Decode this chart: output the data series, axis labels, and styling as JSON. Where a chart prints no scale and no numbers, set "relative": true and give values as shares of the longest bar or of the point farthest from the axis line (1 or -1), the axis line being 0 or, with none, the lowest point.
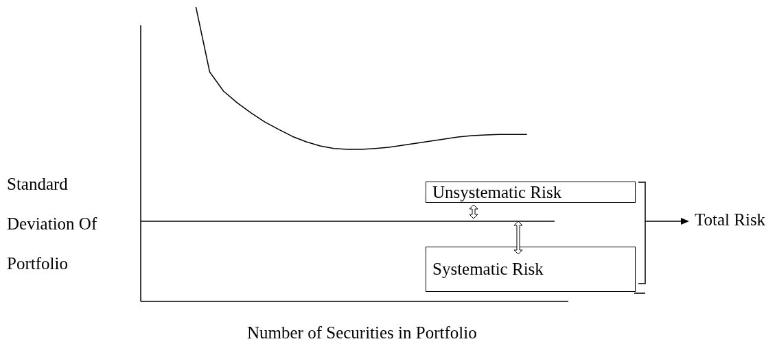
{
  "chart_data": {
    "type": "line",
    "relative": true,
    "xlabel": "Number of Securities in Portfolio",
    "ylabel": "Standard Deviation Of Portfolio",
    "marker": "none",
    "categories": [
      null,
      null,
      null,
      null,
      null,
      null,
      null,
      null,
      null,
      null,
      null,
      null,
      null,
      null,
      null,
      null,
      null,
      null,
      null,
      null,
      null,
      null,
      null,
      null,
      null,
      null,
      null,
      null,
      null,
      null,
      null,
      null
    ],
    "series": [
      {
        "color": "#000000",
        "values": [
          null,
          null,
          null,
          null,
          1,
          0.779,
          0.714,
          0.674,
          0.64,
          0.609,
          0.584,
          0.56,
          0.542,
          0.528,
          0.519,
          0.516,
          0.516,
          0.519,
          0.523,
          0.53,
          0.537,
          0.544,
          0.551,
          0.558,
          0.563,
          0.565,
          0.567,
          0.567,
          0.567,
          null,
          null,
          null
        ]
      },
      {
        "color": "#000000",
        "values": [
          0.272,
          0.272,
          0.272,
          0.272,
          0.272,
          0.272,
          0.272,
          0.272,
          0.272,
          0.272,
          0.272,
          0.272,
          0.272,
          0.272,
          0.272,
          0.272,
          0.272,
          0.272,
          0.272,
          0.272,
          0.272,
          0.272,
          0.272,
          0.272,
          0.272,
          0.272,
          0.272,
          0.272,
          0.272,
          0.272,
          0.272,
          null
        ]
      }
    ],
    "annotations": [
      "Unsystematic Risk",
      "Systematic Risk",
      "Total Risk"
    ]
  }
}
